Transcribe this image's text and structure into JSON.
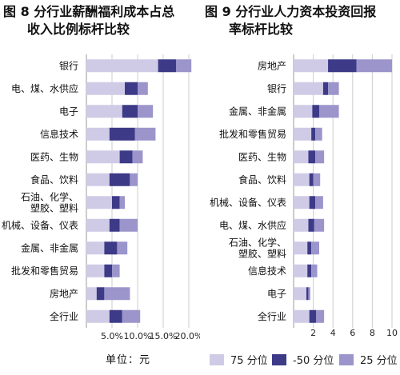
{
  "colors": {
    "p75": "#cfcbe6",
    "m50": "#3d3a88",
    "p25": "#9b95cb"
  },
  "legend": {
    "unit": "单位：元",
    "items": [
      {
        "label": "75 分位",
        "color_key": "p75"
      },
      {
        "label": "-50 分位",
        "color_key": "m50"
      },
      {
        "label": "25 分位",
        "color_key": "p25"
      }
    ]
  },
  "chart_data": [
    {
      "type": "bar",
      "stacked": true,
      "orientation": "horizontal",
      "title": "图 8 分行业薪酬福利成本占总收入比例标杆比较",
      "title_lines": [
        "图 8 分行业薪酬福利成本占总",
        "收入比例标杆比较"
      ],
      "xlim": [
        0,
        20
      ],
      "xticks": [
        "5.0%",
        "10.0%",
        "15.0%",
        "20.0%"
      ],
      "xtick_values": [
        5,
        10,
        15,
        20
      ],
      "categories": [
        [
          "银行"
        ],
        [
          "电、煤、水供应"
        ],
        [
          "电子"
        ],
        [
          "信息技术"
        ],
        [
          "医药、生物"
        ],
        [
          "食品、饮料"
        ],
        [
          "石油、化学、",
          "塑胶、塑料"
        ],
        [
          "机械、设备、仪表"
        ],
        [
          "金属、非金属"
        ],
        [
          "批发和零售贸易"
        ],
        [
          "房地产"
        ],
        [
          "全行业"
        ]
      ],
      "series": [
        {
          "key": "p75",
          "values": [
            14.0,
            7.5,
            7.0,
            4.5,
            6.5,
            4.5,
            5.0,
            4.5,
            3.5,
            3.5,
            2.0,
            4.5
          ]
        },
        {
          "key": "m50",
          "values": [
            3.5,
            2.5,
            3.0,
            5.0,
            2.5,
            4.0,
            1.5,
            2.0,
            2.5,
            1.5,
            1.5,
            2.5
          ]
        },
        {
          "key": "p25",
          "values": [
            3.0,
            2.0,
            3.0,
            4.0,
            2.0,
            1.5,
            1.0,
            3.5,
            2.0,
            1.5,
            5.0,
            3.5
          ]
        }
      ]
    },
    {
      "type": "bar",
      "stacked": true,
      "orientation": "horizontal",
      "title": "图 9 分行业人力资本投资回报率标杆比较",
      "title_lines": [
        "图 9 分行业人力资本投资回报",
        "率标杆比较"
      ],
      "xlim": [
        0,
        10
      ],
      "xticks": [
        "2",
        "4",
        "6",
        "8",
        "10"
      ],
      "xtick_values": [
        2,
        4,
        6,
        8,
        10
      ],
      "categories": [
        [
          "房地产"
        ],
        [
          "银行"
        ],
        [
          "金属、非金属"
        ],
        [
          "批发和零售贸易"
        ],
        [
          "医药、生物"
        ],
        [
          "食品、饮料"
        ],
        [
          "机械、设备、仪表"
        ],
        [
          "电、煤、水供应"
        ],
        [
          "石油、化学、",
          "塑胶、塑料"
        ],
        [
          "信息技术"
        ],
        [
          "电子"
        ],
        [
          "全行业"
        ]
      ],
      "series": [
        {
          "key": "p75",
          "values": [
            3.5,
            3.0,
            1.9,
            1.8,
            1.5,
            1.6,
            1.6,
            1.5,
            1.4,
            1.4,
            1.3,
            1.6
          ]
        },
        {
          "key": "m50",
          "values": [
            2.9,
            0.5,
            0.7,
            0.4,
            0.7,
            0.4,
            0.6,
            0.6,
            0.4,
            0.4,
            0.2,
            0.7
          ]
        },
        {
          "key": "p25",
          "values": [
            3.6,
            1.1,
            2.0,
            0.7,
            0.9,
            0.7,
            0.8,
            1.0,
            0.8,
            0.6,
            0.2,
            0.8
          ]
        }
      ]
    }
  ]
}
